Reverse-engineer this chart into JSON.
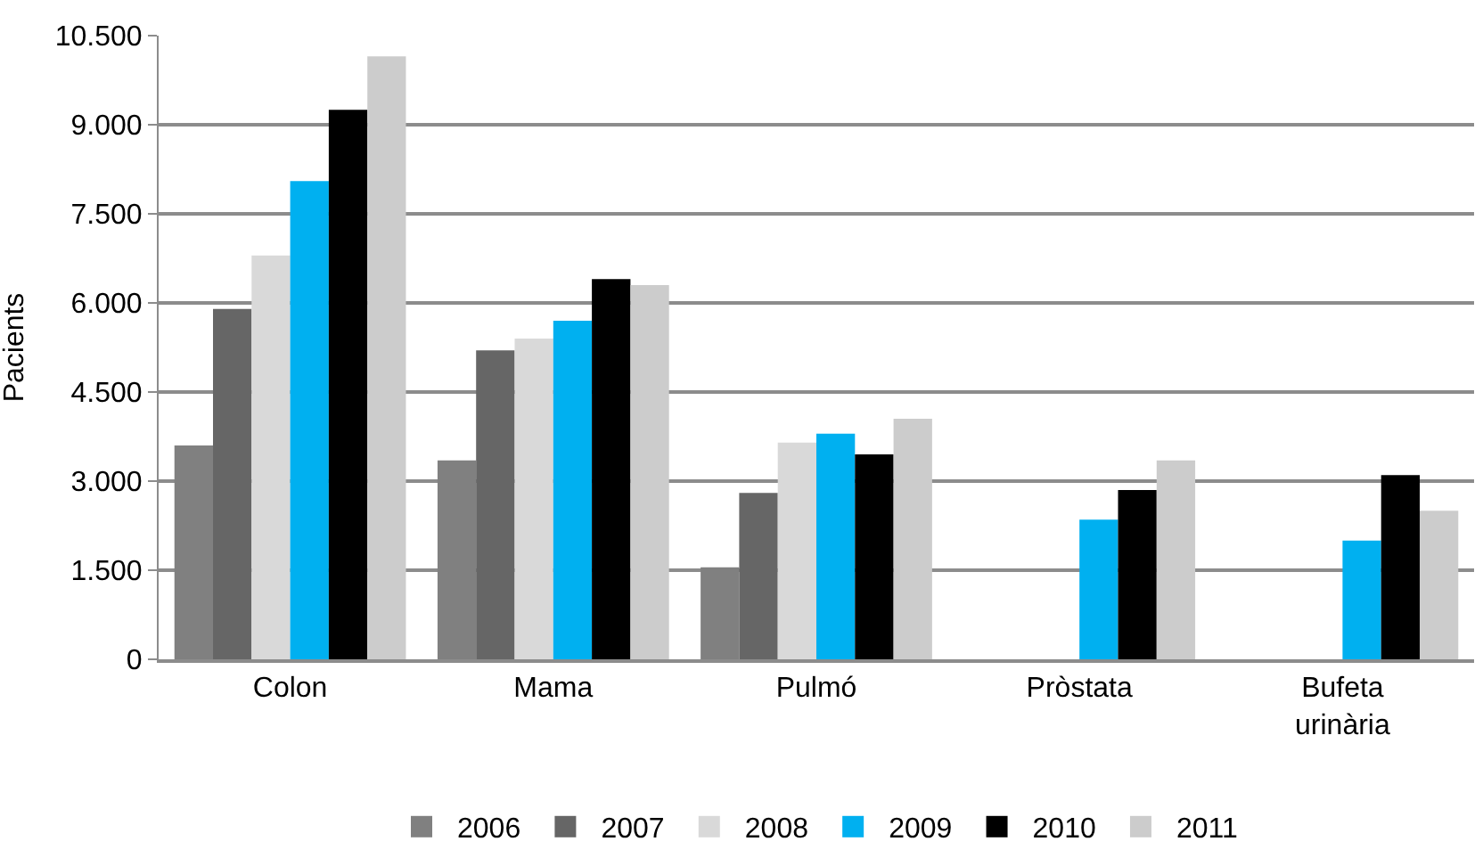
{
  "chart_data": {
    "type": "bar",
    "ylabel": "Pacients",
    "categories": [
      "Colon",
      "Mama",
      "Pulmó",
      "Pròstata",
      "Bufeta\nurinària"
    ],
    "series": [
      {
        "name": "2006",
        "color": "#808080",
        "values": [
          3600,
          3350,
          1550,
          null,
          null
        ]
      },
      {
        "name": "2007",
        "color": "#666666",
        "values": [
          5900,
          5200,
          2800,
          null,
          null
        ]
      },
      {
        "name": "2008",
        "color": "#d9d9d9",
        "values": [
          6800,
          5400,
          3650,
          null,
          null
        ]
      },
      {
        "name": "2009",
        "color": "#00b0f0",
        "values": [
          8050,
          5700,
          3800,
          2350,
          2000
        ]
      },
      {
        "name": "2010",
        "color": "#000000",
        "values": [
          9250,
          6400,
          3450,
          2850,
          3100
        ]
      },
      {
        "name": "2011",
        "color": "#cccccc",
        "values": [
          10150,
          6300,
          4050,
          3350,
          2500
        ]
      }
    ],
    "ylim": [
      0,
      10500
    ],
    "yticks": [
      {
        "value": 0,
        "label": "0"
      },
      {
        "value": 1500,
        "label": "1.500"
      },
      {
        "value": 3000,
        "label": "3.000"
      },
      {
        "value": 4500,
        "label": "4.500"
      },
      {
        "value": 6000,
        "label": "6.000"
      },
      {
        "value": 7500,
        "label": "7.500"
      },
      {
        "value": 9000,
        "label": "9.000"
      },
      {
        "value": 10500,
        "label": "10.500"
      }
    ],
    "grid": "y",
    "legend": "bottom"
  }
}
